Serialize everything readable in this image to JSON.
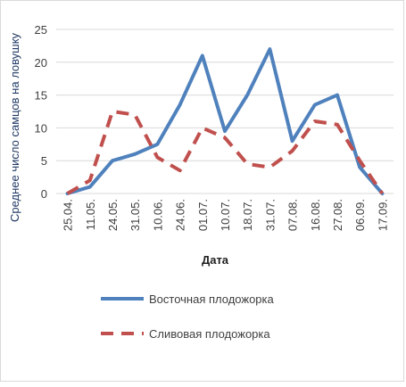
{
  "chart_data": {
    "type": "line",
    "title": "",
    "xlabel": "Дата",
    "ylabel": "Среднее число самцов на ловушку",
    "ylim": [
      0,
      25
    ],
    "yticks": [
      "0",
      "5",
      "10",
      "15",
      "20",
      "25"
    ],
    "categories": [
      "25.04.",
      "11.05.",
      "24.05.",
      "31.05.",
      "10.06.",
      "24.06.",
      "01.07.",
      "10.07.",
      "18.07.",
      "31.07.",
      "07.08.",
      "16.08.",
      "27.08.",
      "06.09.",
      "17.09."
    ],
    "grid": "horizontal",
    "legend_position": "bottom",
    "series": [
      {
        "name": "Восточная плодожорка",
        "values": [
          0,
          1,
          5,
          6,
          7.5,
          13.5,
          21,
          9.5,
          15,
          22,
          8,
          13.5,
          15,
          4,
          0
        ],
        "color": "#4f81bd",
        "style": "solid"
      },
      {
        "name": "Сливовая плодожорка",
        "values": [
          0,
          2,
          12.5,
          12,
          5.5,
          3.5,
          10,
          8.5,
          4.5,
          4,
          6.5,
          11,
          10.5,
          5,
          0
        ],
        "color": "#c0504d",
        "style": "dashed"
      }
    ]
  }
}
